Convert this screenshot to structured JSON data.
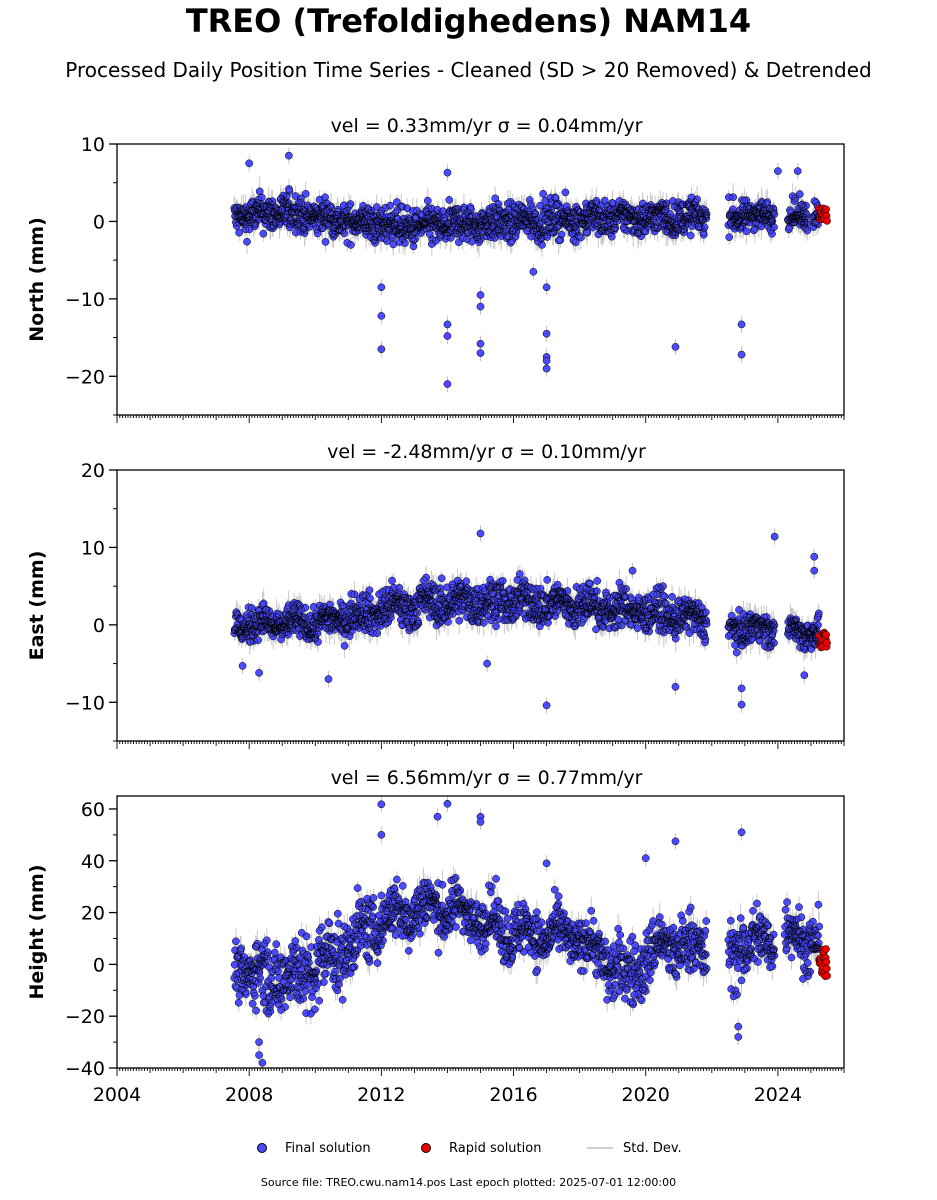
{
  "title": "TREO (Trefoldighedens) NAM14",
  "subtitle": "Processed Daily Position Time Series - Cleaned (SD > 20 Removed) & Detrended",
  "legend": {
    "final": "Final solution",
    "rapid": "Rapid solution",
    "std": "Std. Dev."
  },
  "footer": "Source file: TREO.cwu.nam14.pos  Last epoch plotted: 2025-07-01 12:00:00",
  "colors": {
    "final": "#4a4aff",
    "rapid": "#ee0000",
    "std": "#9a9a9a",
    "axis": "#000000"
  },
  "chart_data": [
    {
      "type": "scatter",
      "panel": "north",
      "title": "vel = 0.33mm/yr   σ = 0.04mm/yr",
      "ylabel": "North (mm)",
      "xlim": [
        2004,
        2026
      ],
      "ylim": [
        -25,
        10
      ],
      "yticks": [
        "10",
        "0",
        "−10",
        "−20"
      ],
      "ytick_values": [
        10,
        0,
        -10,
        -20
      ],
      "data_span": [
        2007.55,
        2025.5
      ],
      "gaps": [
        [
          2021.85,
          2022.5
        ],
        [
          2023.9,
          2024.3
        ],
        [
          2024.9,
          2025.05
        ]
      ],
      "band": [
        [
          2007.6,
          3.0,
          -2.0
        ],
        [
          2009,
          4.0,
          -1.5
        ],
        [
          2011,
          2.5,
          -2.5
        ],
        [
          2013,
          2.0,
          -3.5
        ],
        [
          2015,
          2.5,
          -3.0
        ],
        [
          2017,
          3.0,
          -2.5
        ],
        [
          2019,
          3.0,
          -2.0
        ],
        [
          2021,
          3.0,
          -2.0
        ],
        [
          2023,
          3.0,
          -1.5
        ],
        [
          2025.3,
          3.0,
          -1.0
        ]
      ],
      "seasonal_amplitude": 0.5,
      "outliers": [
        [
          2008.0,
          7.5
        ],
        [
          2009.2,
          8.5
        ],
        [
          2012.0,
          -8.5
        ],
        [
          2012.0,
          -12.2
        ],
        [
          2012.0,
          -16.5
        ],
        [
          2014.0,
          -13.3
        ],
        [
          2014.0,
          -14.8
        ],
        [
          2014.0,
          -21.0
        ],
        [
          2014.0,
          6.3
        ],
        [
          2015.0,
          -9.5
        ],
        [
          2015.0,
          -11.0
        ],
        [
          2015.0,
          -15.8
        ],
        [
          2015.0,
          -17.0
        ],
        [
          2016.6,
          -6.5
        ],
        [
          2017.0,
          -14.5
        ],
        [
          2017.0,
          -17.5
        ],
        [
          2017.0,
          -18.0
        ],
        [
          2017.0,
          -19.0
        ],
        [
          2017.0,
          -8.5
        ],
        [
          2020.9,
          -16.2
        ],
        [
          2022.9,
          -13.3
        ],
        [
          2022.9,
          -17.2
        ],
        [
          2024.0,
          6.5
        ],
        [
          2024.6,
          6.5
        ]
      ],
      "rapid": {
        "x_range": [
          2025.25,
          2025.5
        ],
        "y_range": [
          0.0,
          2.0
        ],
        "n": 18
      }
    },
    {
      "type": "scatter",
      "panel": "east",
      "title": "vel = -2.48mm/yr   σ = 0.10mm/yr",
      "ylabel": "East (mm)",
      "xlim": [
        2004,
        2026
      ],
      "ylim": [
        -15,
        20
      ],
      "yticks": [
        "20",
        "10",
        "0",
        "−10"
      ],
      "ytick_values": [
        20,
        10,
        0,
        -10
      ],
      "data_span": [
        2007.55,
        2025.5
      ],
      "gaps": [
        [
          2021.85,
          2022.5
        ],
        [
          2023.9,
          2024.3
        ]
      ],
      "band": [
        [
          2007.6,
          2.5,
          -2.5
        ],
        [
          2010,
          2.5,
          -2.0
        ],
        [
          2012,
          5.0,
          -1.0
        ],
        [
          2014,
          6.0,
          0.0
        ],
        [
          2016,
          6.0,
          0.0
        ],
        [
          2018,
          5.5,
          -0.5
        ],
        [
          2020,
          4.5,
          -1.0
        ],
        [
          2021.8,
          3.0,
          -2.0
        ],
        [
          2022.5,
          2.0,
          -2.5
        ],
        [
          2025.3,
          1.0,
          -3.0
        ]
      ],
      "seasonal_amplitude": 1.0,
      "outliers": [
        [
          2007.8,
          -5.3
        ],
        [
          2008.3,
          -6.2
        ],
        [
          2010.4,
          -7.0
        ],
        [
          2015.0,
          11.8
        ],
        [
          2015.2,
          -5.0
        ],
        [
          2017.0,
          -10.4
        ],
        [
          2019.6,
          7.0
        ],
        [
          2020.9,
          -8.0
        ],
        [
          2022.9,
          -8.2
        ],
        [
          2022.9,
          -10.3
        ],
        [
          2023.9,
          11.4
        ],
        [
          2024.8,
          -6.5
        ],
        [
          2025.1,
          8.8
        ],
        [
          2025.1,
          7.0
        ]
      ],
      "rapid": {
        "x_range": [
          2025.25,
          2025.5
        ],
        "y_range": [
          -3.0,
          -1.0
        ],
        "n": 18
      }
    },
    {
      "type": "scatter",
      "panel": "height",
      "title": "vel = 6.56mm/yr   σ = 0.77mm/yr",
      "ylabel": "Height (mm)",
      "xlim": [
        2004,
        2026
      ],
      "ylim": [
        -40,
        65
      ],
      "yticks": [
        "60",
        "40",
        "20",
        "0",
        "−20",
        "−40"
      ],
      "ytick_values": [
        60,
        40,
        20,
        0,
        -20,
        -40
      ],
      "xticks": [
        2004,
        2008,
        2012,
        2016,
        2020,
        2024
      ],
      "data_span": [
        2007.55,
        2025.5
      ],
      "gaps": [
        [
          2021.85,
          2022.5
        ],
        [
          2023.9,
          2024.2
        ]
      ],
      "band": [
        [
          2007.6,
          10,
          -12
        ],
        [
          2008.5,
          10,
          -20
        ],
        [
          2010,
          15,
          -20
        ],
        [
          2012,
          30,
          5
        ],
        [
          2013.5,
          35,
          10
        ],
        [
          2014.5,
          30,
          10
        ],
        [
          2016,
          25,
          0
        ],
        [
          2018,
          20,
          0
        ],
        [
          2019.4,
          10,
          -20
        ],
        [
          2020.5,
          20,
          -5
        ],
        [
          2022.5,
          20,
          -10
        ],
        [
          2024.5,
          25,
          0
        ],
        [
          2025.3,
          20,
          -5
        ]
      ],
      "seasonal_amplitude": 6.0,
      "outliers": [
        [
          2008.3,
          -30
        ],
        [
          2008.3,
          -35
        ],
        [
          2008.4,
          -38
        ],
        [
          2012.0,
          61.8
        ],
        [
          2012.0,
          50
        ],
        [
          2013.7,
          57
        ],
        [
          2014.0,
          62
        ],
        [
          2015.0,
          57
        ],
        [
          2015.0,
          55
        ],
        [
          2017.0,
          39
        ],
        [
          2020.0,
          41
        ],
        [
          2020.9,
          47.5
        ],
        [
          2022.9,
          51
        ],
        [
          2022.8,
          -24
        ],
        [
          2022.8,
          -28
        ]
      ],
      "rapid": {
        "x_range": [
          2025.25,
          2025.5
        ],
        "y_range": [
          -5,
          6
        ],
        "n": 22
      }
    }
  ]
}
